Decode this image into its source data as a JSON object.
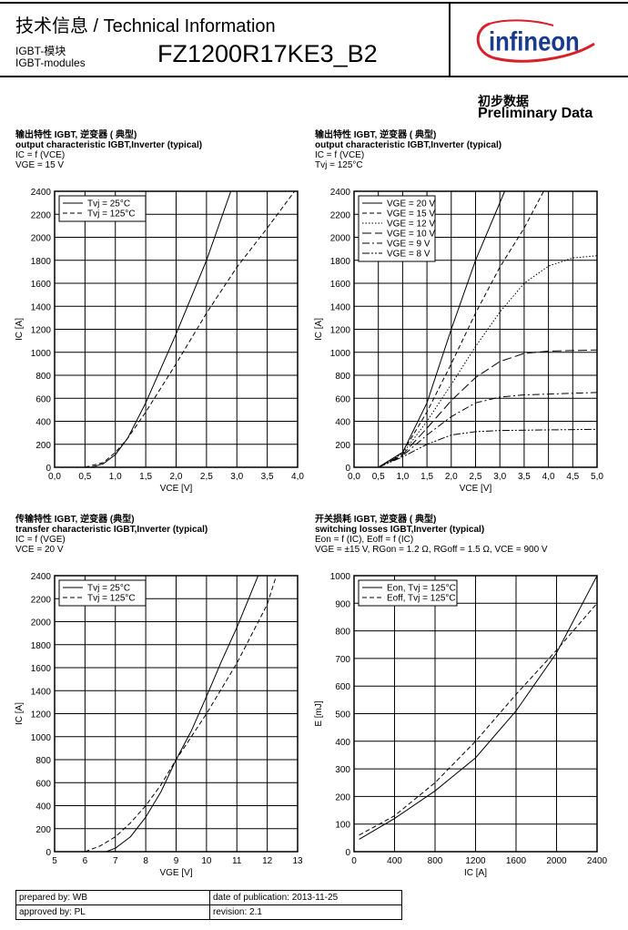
{
  "header": {
    "title": "技术信息 / Technical Information",
    "category_cn": "IGBT-模块",
    "category_en": "IGBT-modules",
    "part_number": "FZ1200R17KE3_B2",
    "logo_text": "infineon",
    "preliminary_cn": "初步数据",
    "preliminary_en": "Preliminary Data"
  },
  "colors": {
    "logo_blue": "#1a3a8c",
    "logo_red": "#d6202a",
    "grid": "#000000"
  },
  "chart_data": [
    {
      "type": "line",
      "title_cn": "输出特性 IGBT, 逆变器 ( 典型)",
      "title_en": "output characteristic IGBT,Inverter (typical)",
      "params": [
        "IC = f (VCE)",
        "VGE = 15 V"
      ],
      "xlabel": "VCE [V]",
      "ylabel": "IC [A]",
      "xlim": [
        0,
        4
      ],
      "ylim": [
        0,
        2400
      ],
      "xticks": [
        0,
        0.5,
        1,
        1.5,
        2,
        2.5,
        3,
        3.5,
        4
      ],
      "xtick_labels": [
        "0,0",
        "0,5",
        "1,0",
        "1,5",
        "2,0",
        "2,5",
        "3,0",
        "3,5",
        "4,0"
      ],
      "yticks": [
        0,
        200,
        400,
        600,
        800,
        1000,
        1200,
        1400,
        1600,
        1800,
        2000,
        2200,
        2400
      ],
      "ytick_labels": [
        "0",
        "200",
        "400",
        "600",
        "800",
        "1000",
        "1200",
        "1400",
        "1600",
        "1800",
        "2000",
        "2200",
        "2400"
      ],
      "grid": true,
      "legend_position": "top-left",
      "series": [
        {
          "name": "Tvj = 25°C",
          "style": "solid",
          "x": [
            0.6,
            0.8,
            1.0,
            1.2,
            1.5,
            2.0,
            2.5,
            2.9
          ],
          "y": [
            0,
            30,
            110,
            250,
            560,
            1160,
            1800,
            2400
          ]
        },
        {
          "name": "Tvj = 125°C",
          "style": "dashed",
          "x": [
            0.5,
            0.8,
            1.0,
            1.2,
            1.5,
            2.0,
            2.5,
            3.0,
            3.5,
            3.95
          ],
          "y": [
            0,
            40,
            130,
            250,
            480,
            900,
            1340,
            1740,
            2080,
            2400
          ]
        }
      ]
    },
    {
      "type": "line",
      "title_cn": "输出特性 IGBT, 逆变器 ( 典型)",
      "title_en": "output characteristic IGBT,Inverter (typical)",
      "params": [
        "IC = f (VCE)",
        "Tvj = 125°C"
      ],
      "xlabel": "VCE [V]",
      "ylabel": "IC [A]",
      "xlim": [
        0,
        5
      ],
      "ylim": [
        0,
        2400
      ],
      "xticks": [
        0,
        0.5,
        1,
        1.5,
        2,
        2.5,
        3,
        3.5,
        4,
        4.5,
        5
      ],
      "xtick_labels": [
        "0,0",
        "0,5",
        "1,0",
        "1,5",
        "2,0",
        "2,5",
        "3,0",
        "3,5",
        "4,0",
        "4,5",
        "5,0"
      ],
      "yticks": [
        0,
        200,
        400,
        600,
        800,
        1000,
        1200,
        1400,
        1600,
        1800,
        2000,
        2200,
        2400
      ],
      "ytick_labels": [
        "0",
        "200",
        "400",
        "600",
        "800",
        "1000",
        "1200",
        "1400",
        "1600",
        "1800",
        "2000",
        "2200",
        "2400"
      ],
      "grid": true,
      "legend_position": "top-left",
      "series": [
        {
          "name": "VGE = 20 V",
          "style": "solid",
          "x": [
            0.5,
            1,
            1.5,
            2,
            2.5,
            3.1
          ],
          "y": [
            0,
            130,
            560,
            1200,
            1800,
            2400
          ]
        },
        {
          "name": "VGE = 15 V",
          "style": "dashed",
          "x": [
            0.5,
            1,
            1.5,
            2,
            2.5,
            3,
            3.5,
            3.9
          ],
          "y": [
            0,
            130,
            480,
            900,
            1340,
            1740,
            2080,
            2400
          ]
        },
        {
          "name": "VGE = 12 V",
          "style": "dotted",
          "x": [
            0.5,
            1,
            1.5,
            2,
            2.5,
            3,
            3.5,
            4,
            4.5,
            5
          ],
          "y": [
            0,
            120,
            400,
            720,
            1050,
            1350,
            1600,
            1750,
            1820,
            1840
          ]
        },
        {
          "name": "VGE = 10 V",
          "style": "longdash",
          "x": [
            0.5,
            1,
            1.5,
            2,
            2.5,
            3,
            3.5,
            4,
            5
          ],
          "y": [
            0,
            110,
            340,
            580,
            780,
            920,
            990,
            1010,
            1020
          ]
        },
        {
          "name": "VGE =  9 V",
          "style": "dashdot",
          "x": [
            0.5,
            1,
            1.5,
            2,
            2.5,
            3,
            3.5,
            5
          ],
          "y": [
            0,
            100,
            280,
            440,
            560,
            610,
            630,
            650
          ]
        },
        {
          "name": "VGE =  8 V",
          "style": "dashdotdot",
          "x": [
            0.5,
            1,
            1.5,
            2,
            2.5,
            3,
            5
          ],
          "y": [
            0,
            90,
            200,
            280,
            310,
            320,
            330
          ]
        }
      ]
    },
    {
      "type": "line",
      "title_cn": "传输特性 IGBT, 逆变器 (典型)",
      "title_en": "transfer characteristic IGBT,Inverter (typical)",
      "params": [
        "IC = f (VGE)",
        "VCE = 20 V"
      ],
      "xlabel": "VGE [V]",
      "ylabel": "IC [A]",
      "xlim": [
        5,
        13
      ],
      "ylim": [
        0,
        2400
      ],
      "xticks": [
        5,
        6,
        7,
        8,
        9,
        10,
        11,
        12,
        13
      ],
      "xtick_labels": [
        "5",
        "6",
        "7",
        "8",
        "9",
        "10",
        "11",
        "12",
        "13"
      ],
      "yticks": [
        0,
        200,
        400,
        600,
        800,
        1000,
        1200,
        1400,
        1600,
        1800,
        2000,
        2200,
        2400
      ],
      "ytick_labels": [
        "0",
        "200",
        "400",
        "600",
        "800",
        "1000",
        "1200",
        "1400",
        "1600",
        "1800",
        "2000",
        "2200",
        "2400"
      ],
      "grid": true,
      "legend_position": "top-left",
      "series": [
        {
          "name": "Tvj = 25°C",
          "style": "solid",
          "x": [
            6.7,
            7,
            7.5,
            8,
            8.5,
            9,
            9.5,
            10,
            10.5,
            11,
            11.7
          ],
          "y": [
            0,
            30,
            130,
            300,
            520,
            800,
            1050,
            1350,
            1660,
            1950,
            2400
          ]
        },
        {
          "name": "Tvj = 125°C",
          "style": "dashed",
          "x": [
            6,
            6.5,
            7,
            7.5,
            8,
            8.5,
            9,
            9.5,
            10,
            11,
            12,
            12.3
          ],
          "y": [
            0,
            50,
            130,
            250,
            400,
            580,
            800,
            1000,
            1200,
            1640,
            2150,
            2400
          ]
        }
      ]
    },
    {
      "type": "line",
      "title_cn": "开关损耗 IGBT, 逆变器 ( 典型)",
      "title_en": "switching losses IGBT,Inverter (typical)",
      "params": [
        "Eon = f (IC), Eoff = f (IC)",
        "VGE = ±15 V, RGon = 1.2 Ω, RGoff = 1.5 Ω, VCE = 900 V"
      ],
      "xlabel": "IC [A]",
      "ylabel": "E [mJ]",
      "xlim": [
        0,
        2400
      ],
      "ylim": [
        0,
        1000
      ],
      "xticks": [
        0,
        400,
        800,
        1200,
        1600,
        2000,
        2400
      ],
      "xtick_labels": [
        "0",
        "400",
        "800",
        "1200",
        "1600",
        "2000",
        "2400"
      ],
      "yticks": [
        0,
        100,
        200,
        300,
        400,
        500,
        600,
        700,
        800,
        900,
        1000
      ],
      "ytick_labels": [
        "0",
        "100",
        "200",
        "300",
        "400",
        "500",
        "600",
        "700",
        "800",
        "900",
        "1000"
      ],
      "grid": true,
      "legend_position": "top-left",
      "series": [
        {
          "name": "Eon, Tvj = 125°C",
          "style": "solid",
          "x": [
            50,
            400,
            800,
            1200,
            1600,
            2000,
            2400
          ],
          "y": [
            45,
            120,
            220,
            340,
            510,
            720,
            1000
          ]
        },
        {
          "name": "Eoff, Tvj = 125°C",
          "style": "dashed",
          "x": [
            50,
            400,
            800,
            1200,
            1600,
            2000,
            2400
          ],
          "y": [
            60,
            130,
            250,
            400,
            570,
            730,
            900
          ]
        }
      ]
    }
  ],
  "footer": {
    "prepared_by": "prepared by: WB",
    "date": "date of publication: 2013-11-25",
    "approved_by": "approved by: PL",
    "revision": "revision: 2.1"
  }
}
